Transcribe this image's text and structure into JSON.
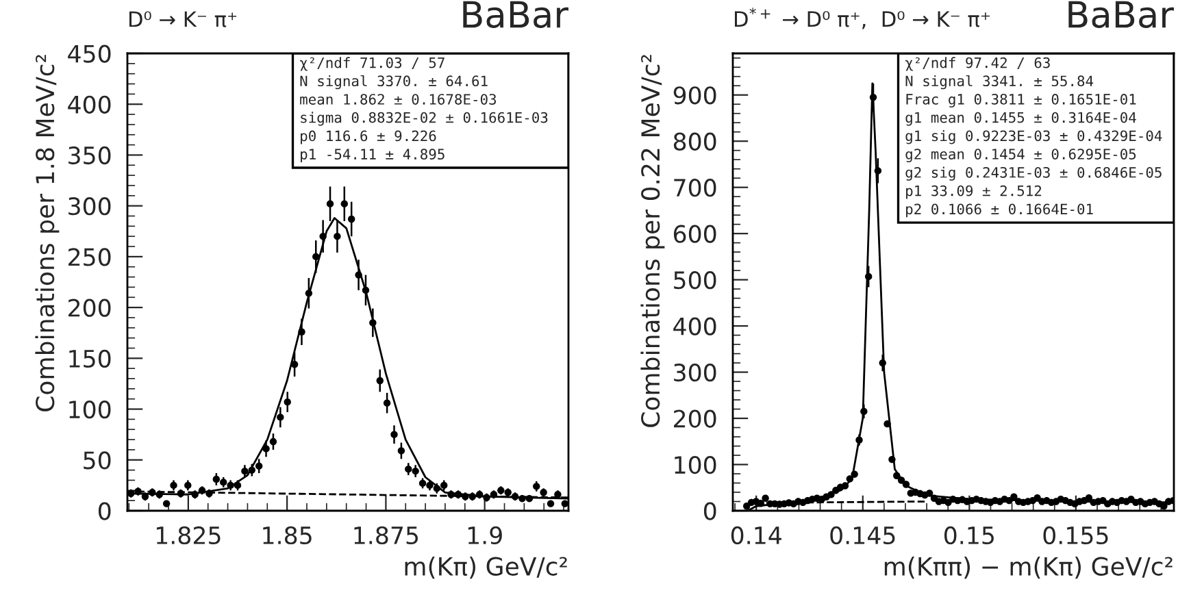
{
  "chart_data": [
    {
      "type": "scatter",
      "title": "D⁰ → K⁻ π⁺",
      "xlabel": "m(Kπ) GeV/c²",
      "ylabel": "Combinations per 1.8 MeV/c²",
      "xlim": [
        1.8096,
        1.9212
      ],
      "ylim": [
        0,
        450
      ],
      "xticks": [
        1.825,
        1.85,
        1.875,
        1.9
      ],
      "yticks": [
        0,
        50,
        100,
        150,
        200,
        250,
        300,
        350,
        400,
        450
      ],
      "annotations": [
        "BaBar",
        "χ²/ndf 71.03 / 57",
        "N signal 3370. ± 64.61",
        "mean 1.862 ± 0.1678E-03",
        "sigma 0.8832E-02 ± 0.1661E-03",
        "p0 116.6 ± 9.226",
        "p1 -54.11 ± 4.895"
      ],
      "series": [
        {
          "marker": "circle",
          "color": "#000000",
          "x": [
            1.8105,
            1.8123,
            1.8141,
            1.8159,
            1.8177,
            1.8195,
            1.8213,
            1.8231,
            1.8249,
            1.8267,
            1.8285,
            1.8303,
            1.8321,
            1.8339,
            1.8357,
            1.8375,
            1.8393,
            1.8411,
            1.8429,
            1.8447,
            1.8465,
            1.8483,
            1.8501,
            1.8519,
            1.8537,
            1.8555,
            1.8573,
            1.8591,
            1.8609,
            1.8627,
            1.8645,
            1.8663,
            1.8681,
            1.8699,
            1.8717,
            1.8735,
            1.8753,
            1.8771,
            1.8789,
            1.8807,
            1.8825,
            1.8843,
            1.8861,
            1.8879,
            1.8897,
            1.8915,
            1.8933,
            1.8951,
            1.8969,
            1.8987,
            1.9005,
            1.9023,
            1.9041,
            1.9059,
            1.9077,
            1.9095,
            1.9113,
            1.9131,
            1.9149,
            1.9167,
            1.9185,
            1.9203
          ],
          "values": [
            17,
            19,
            14,
            18,
            16,
            7,
            25,
            17,
            25,
            16,
            20,
            17,
            31,
            28,
            25,
            25,
            39,
            40,
            44,
            61,
            68,
            92,
            107,
            144,
            176,
            214,
            250,
            270,
            302,
            270,
            302,
            287,
            232,
            217,
            185,
            128,
            106,
            75,
            59,
            41,
            39,
            27,
            25,
            22,
            25,
            16,
            16,
            14,
            14,
            16,
            13,
            16,
            20,
            18,
            14,
            12,
            12,
            24,
            18,
            7,
            16,
            7
          ],
          "errors": [
            4,
            4,
            4,
            4,
            4,
            3,
            5,
            4,
            5,
            4,
            4,
            4,
            6,
            5,
            5,
            5,
            6,
            6,
            7,
            8,
            8,
            10,
            10,
            12,
            13,
            15,
            16,
            16,
            17,
            16,
            17,
            17,
            15,
            15,
            14,
            11,
            10,
            9,
            8,
            6,
            6,
            5,
            5,
            5,
            5,
            4,
            4,
            4,
            4,
            4,
            4,
            4,
            4,
            4,
            4,
            3,
            3,
            5,
            4,
            3,
            4,
            3
          ]
        },
        {
          "type": "line",
          "color": "#000000",
          "line_style": "solid",
          "x": [
            1.8096,
            1.825,
            1.835,
            1.84,
            1.845,
            1.85,
            1.855,
            1.86,
            1.862,
            1.865,
            1.87,
            1.875,
            1.88,
            1.885,
            1.89,
            1.9,
            1.9212
          ],
          "values": [
            17,
            16,
            22,
            35,
            70,
            128,
            205,
            275,
            288,
            278,
            215,
            135,
            70,
            33,
            18,
            14,
            12
          ]
        },
        {
          "type": "line",
          "color": "#000000",
          "line_style": "dashed",
          "x": [
            1.8096,
            1.9212
          ],
          "values": [
            19,
            13
          ]
        }
      ]
    },
    {
      "type": "scatter",
      "title": "D$^{*+}$ → D⁰ π⁺,  D⁰ → K⁻ π⁺",
      "xlabel": "m(Kππ) − m(Kπ) GeV/c²",
      "ylabel": "Combinations per 0.22 MeV/c²",
      "xlim": [
        0.1389,
        0.1596
      ],
      "ylim": [
        0,
        990
      ],
      "xticks": [
        0.14,
        0.145,
        0.15,
        0.155
      ],
      "yticks": [
        0,
        100,
        200,
        300,
        400,
        500,
        600,
        700,
        800,
        900
      ],
      "annotations": [
        "BaBar",
        "χ²/ndf 97.42 / 63",
        "N signal 3341. ± 55.84",
        "Frac g1 0.3811 ± 0.1651E-01",
        "g1 mean 0.1455 ± 0.3164E-04",
        "g1 sig 0.9223E-03 ± 0.4329E-04",
        "g2 mean 0.1454 ± 0.6295E-05",
        "g2 sig 0.2431E-03 ± 0.6846E-05",
        "p1 33.09 ± 2.512",
        "p2 0.1066 ± 0.1664E-01"
      ],
      "series": [
        {
          "marker": "circle",
          "color": "#000000",
          "x": [
            0.13955,
            0.13977,
            0.13999,
            0.14021,
            0.14043,
            0.14065,
            0.14087,
            0.14109,
            0.14131,
            0.14153,
            0.14175,
            0.14197,
            0.14219,
            0.14241,
            0.14263,
            0.14285,
            0.14307,
            0.14329,
            0.14351,
            0.14373,
            0.14395,
            0.14417,
            0.14439,
            0.14461,
            0.14483,
            0.14505,
            0.14527,
            0.14549,
            0.14571,
            0.14593,
            0.14615,
            0.14637,
            0.14659,
            0.14681,
            0.14703,
            0.14725,
            0.14747,
            0.14769,
            0.14791,
            0.14813,
            0.14835,
            0.14857,
            0.14879,
            0.14901,
            0.14923,
            0.14945,
            0.14967,
            0.14989,
            0.15011,
            0.15033,
            0.15055,
            0.15077,
            0.15099,
            0.15121,
            0.15143,
            0.15165,
            0.15187,
            0.15209,
            0.15231,
            0.15253,
            0.15275,
            0.15297,
            0.15319,
            0.15341,
            0.15363,
            0.15385,
            0.15407,
            0.15429,
            0.15451,
            0.15473,
            0.15495,
            0.15517,
            0.15539,
            0.15561,
            0.15583,
            0.15605,
            0.15627,
            0.15649,
            0.15671,
            0.15693,
            0.15715,
            0.15737,
            0.15759,
            0.15781,
            0.15803,
            0.15825,
            0.15847,
            0.15869,
            0.15891,
            0.15913,
            0.15935,
            0.15957
          ],
          "values": [
            10,
            18,
            20,
            16,
            27,
            15,
            15,
            14,
            15,
            17,
            15,
            20,
            18,
            22,
            25,
            27,
            25,
            30,
            35,
            44,
            51,
            54,
            69,
            79,
            153,
            215,
            507,
            895,
            736,
            320,
            188,
            111,
            76,
            66,
            57,
            38,
            40,
            37,
            34,
            38,
            27,
            20,
            22,
            18,
            25,
            22,
            24,
            20,
            22,
            25,
            22,
            20,
            18,
            22,
            20,
            25,
            22,
            30,
            20,
            18,
            20,
            22,
            28,
            20,
            22,
            18,
            20,
            25,
            22,
            18,
            15,
            20,
            22,
            28,
            18,
            20,
            22,
            15,
            20,
            18,
            22,
            20,
            25,
            18,
            20,
            15,
            18,
            20,
            15,
            10,
            20,
            22
          ],
          "errors": [
            null,
            null,
            null,
            null,
            null,
            null,
            null,
            null,
            null,
            null,
            null,
            null,
            null,
            null,
            null,
            null,
            null,
            null,
            null,
            null,
            null,
            null,
            null,
            null,
            12,
            15,
            23,
            30,
            27,
            18,
            null,
            null,
            null,
            null,
            null,
            null,
            null,
            null,
            null,
            null,
            null,
            null,
            null,
            null,
            null,
            null,
            null,
            null,
            null,
            null,
            null,
            null,
            null,
            null,
            null,
            null,
            null,
            null,
            null,
            null,
            null,
            null,
            null,
            null,
            null,
            null,
            null,
            null,
            null,
            null,
            null,
            null,
            null,
            null,
            null,
            null,
            null,
            null,
            null,
            null,
            null,
            null,
            null,
            null,
            null,
            null,
            null,
            null,
            null,
            null,
            null,
            null
          ]
        },
        {
          "type": "line",
          "color": "#000000",
          "line_style": "solid",
          "x": [
            0.1396,
            0.14,
            0.141,
            0.142,
            0.143,
            0.144,
            0.1445,
            0.145,
            0.1453,
            0.14545,
            0.1456,
            0.146,
            0.1465,
            0.147,
            0.148,
            0.15,
            0.155,
            0.1596
          ],
          "values": [
            0,
            10,
            15,
            20,
            28,
            45,
            70,
            200,
            650,
            925,
            780,
            300,
            90,
            55,
            33,
            25,
            20,
            18
          ]
        },
        {
          "type": "line",
          "color": "#000000",
          "line_style": "dashed",
          "x": [
            0.14,
            0.148
          ],
          "values": [
            17,
            20
          ]
        }
      ]
    }
  ]
}
